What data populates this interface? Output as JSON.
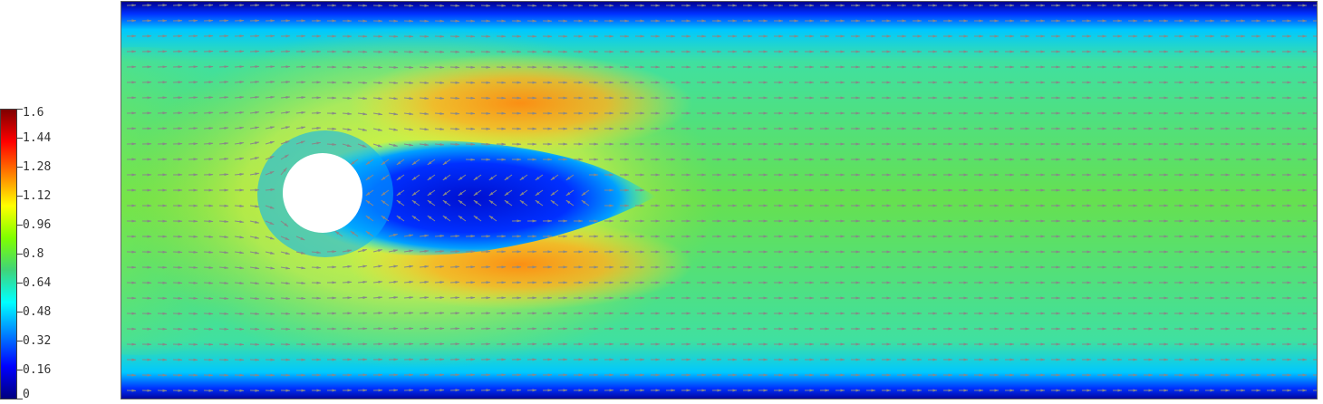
{
  "colorbar": {
    "min": 0,
    "max": 1.6,
    "tick_labels": [
      "1.6",
      "1.44",
      "1.28",
      "1.12",
      "0.96",
      "0.8",
      "0.64",
      "0.48",
      "0.32",
      "0.16",
      "0"
    ],
    "tick_values": [
      1.6,
      1.44,
      1.28,
      1.12,
      0.96,
      0.8,
      0.64,
      0.48,
      0.32,
      0.16,
      0
    ],
    "colors": [
      "#00007f",
      "#0000ff",
      "#007fff",
      "#00ffff",
      "#3fd47a",
      "#7fff00",
      "#ffff00",
      "#ff7f00",
      "#ff0000",
      "#7f0000"
    ]
  },
  "field": {
    "arrow_color": "#888888",
    "obstacle_color": "#ffffff"
  }
}
